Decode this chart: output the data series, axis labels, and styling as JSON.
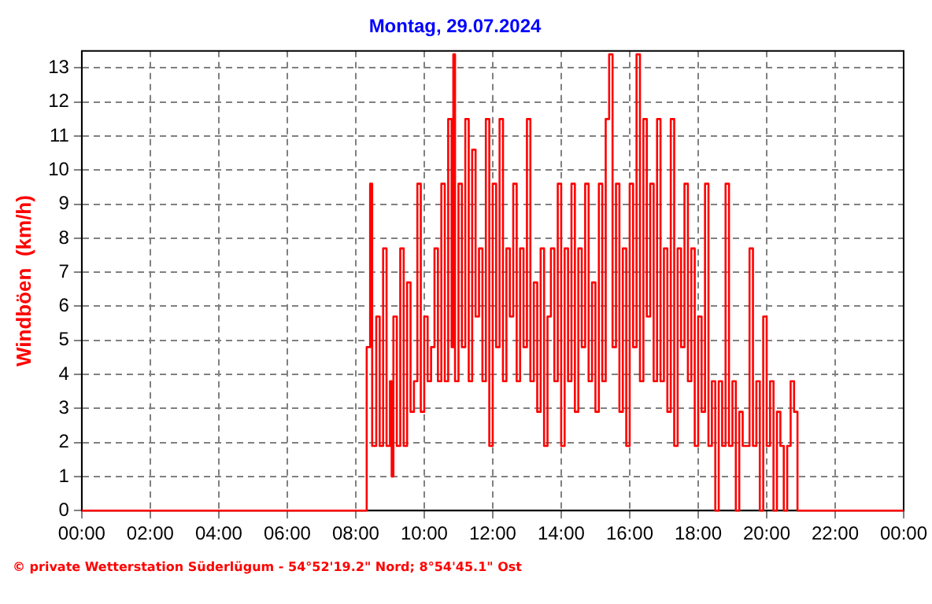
{
  "chart_data": {
    "type": "step",
    "title": "Montag, 29.07.2024",
    "ylabel": "Windböen  (km/h)",
    "xlim": [
      0,
      24
    ],
    "xticks": [
      {
        "value": 0,
        "label": "00:00"
      },
      {
        "value": 2,
        "label": "02:00"
      },
      {
        "value": 4,
        "label": "04:00"
      },
      {
        "value": 6,
        "label": "06:00"
      },
      {
        "value": 8,
        "label": "08:00"
      },
      {
        "value": 10,
        "label": "10:00"
      },
      {
        "value": 12,
        "label": "12:00"
      },
      {
        "value": 14,
        "label": "14:00"
      },
      {
        "value": 16,
        "label": "16:00"
      },
      {
        "value": 18,
        "label": "18:00"
      },
      {
        "value": 20,
        "label": "20:00"
      },
      {
        "value": 22,
        "label": "22:00"
      },
      {
        "value": 24,
        "label": "00:00"
      }
    ],
    "ylim": [
      0,
      13.5
    ],
    "yticks": [
      0,
      1,
      2,
      3,
      4,
      5,
      6,
      7,
      8,
      9,
      10,
      11,
      12,
      13
    ],
    "grid": true,
    "legend": false,
    "marker": "none",
    "line_style": "solid",
    "annotations": [
      "© private Wetterstation Süderlügum - 54°52'19.2\" Nord; 8°54'45.1\" Ost"
    ],
    "series": [
      {
        "color": "#ff0000",
        "x": [
          0,
          8.3,
          8.32,
          8.42,
          8.48,
          8.6,
          8.7,
          8.8,
          8.9,
          9.0,
          9.05,
          9.1,
          9.2,
          9.3,
          9.4,
          9.5,
          9.6,
          9.7,
          9.8,
          9.9,
          10.0,
          10.1,
          10.2,
          10.3,
          10.4,
          10.5,
          10.6,
          10.7,
          10.8,
          10.85,
          10.9,
          11.0,
          11.1,
          11.2,
          11.3,
          11.4,
          11.5,
          11.6,
          11.7,
          11.8,
          11.9,
          12.0,
          12.1,
          12.2,
          12.3,
          12.4,
          12.5,
          12.6,
          12.7,
          12.8,
          12.9,
          13.0,
          13.1,
          13.2,
          13.3,
          13.4,
          13.5,
          13.6,
          13.7,
          13.8,
          13.9,
          14.0,
          14.1,
          14.2,
          14.3,
          14.4,
          14.5,
          14.6,
          14.7,
          14.8,
          14.9,
          15.0,
          15.1,
          15.2,
          15.3,
          15.4,
          15.5,
          15.6,
          15.7,
          15.8,
          15.9,
          16.0,
          16.1,
          16.2,
          16.3,
          16.4,
          16.5,
          16.6,
          16.7,
          16.8,
          16.9,
          17.0,
          17.1,
          17.2,
          17.3,
          17.4,
          17.5,
          17.6,
          17.7,
          17.8,
          17.9,
          18.0,
          18.1,
          18.2,
          18.3,
          18.4,
          18.5,
          18.6,
          18.7,
          18.8,
          18.9,
          19.0,
          19.1,
          19.2,
          19.3,
          19.5,
          19.6,
          19.7,
          19.8,
          19.9,
          20.0,
          20.1,
          20.2,
          20.3,
          20.4,
          20.5,
          20.6,
          20.7,
          20.8,
          20.9,
          24
        ],
        "values": [
          0,
          0,
          4.8,
          9.6,
          1.9,
          5.7,
          1.9,
          7.7,
          1.9,
          3.8,
          1.0,
          5.7,
          1.9,
          7.7,
          1.9,
          6.7,
          2.9,
          3.8,
          9.6,
          2.9,
          5.7,
          3.8,
          4.8,
          7.7,
          3.8,
          9.6,
          3.8,
          11.5,
          4.8,
          13.4,
          3.8,
          9.6,
          4.8,
          11.5,
          3.8,
          10.6,
          5.7,
          7.7,
          3.8,
          11.5,
          1.9,
          9.6,
          4.8,
          11.5,
          3.8,
          7.7,
          5.7,
          9.6,
          3.8,
          7.7,
          4.8,
          11.5,
          3.8,
          6.7,
          2.9,
          7.7,
          1.9,
          5.7,
          7.7,
          3.8,
          9.6,
          1.9,
          7.7,
          3.8,
          9.6,
          2.9,
          7.7,
          4.8,
          9.6,
          3.8,
          6.7,
          2.9,
          9.6,
          3.8,
          11.5,
          13.4,
          4.8,
          9.6,
          2.9,
          7.7,
          1.9,
          9.6,
          4.8,
          13.4,
          3.8,
          11.5,
          5.7,
          9.6,
          3.8,
          11.5,
          3.8,
          7.7,
          2.9,
          11.5,
          1.9,
          7.7,
          4.8,
          9.6,
          3.8,
          7.7,
          1.9,
          5.7,
          2.9,
          9.6,
          1.9,
          3.8,
          0,
          3.8,
          1.9,
          9.6,
          1.9,
          3.8,
          0,
          2.9,
          1.9,
          7.7,
          1.9,
          3.8,
          0,
          5.7,
          1.9,
          3.8,
          0,
          2.9,
          1.9,
          0,
          1.9,
          3.8,
          2.9,
          0,
          0
        ]
      }
    ]
  }
}
